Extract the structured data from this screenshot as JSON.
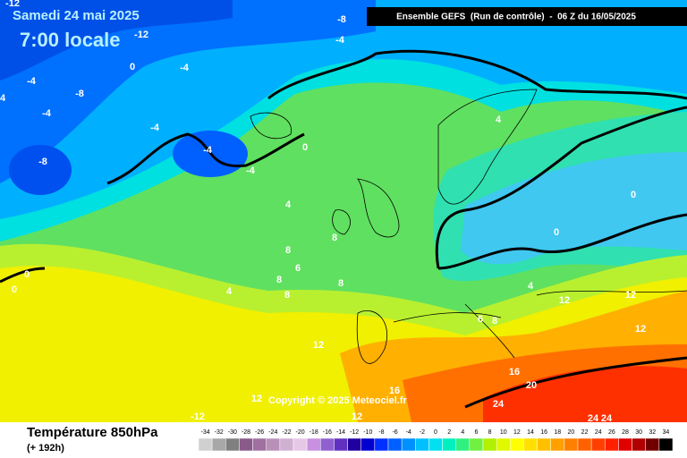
{
  "header": {
    "date": "Samedi 24 mai 2025",
    "time": "7:00 locale",
    "model": "Ensemble GEFS  (Run de contrôle)  -  06 Z du 16/05/2025"
  },
  "footer": {
    "title": "Température 850hPa",
    "lead": "(+ 192h)",
    "copyright": "Copyright © 2025 Meteociel.fr"
  },
  "contour_labels": [
    "-12",
    "-8",
    "-12",
    "-4",
    "0",
    "-4",
    "-4",
    "-8",
    "4",
    "-4",
    "-4",
    "4",
    "0",
    "-4",
    "-4",
    "-8",
    "0",
    "4",
    "8",
    "0",
    "8",
    "6",
    "0",
    "8",
    "8",
    "0",
    "4",
    "4",
    "12",
    "12",
    "8",
    "6",
    "8",
    "12",
    "12",
    "16",
    "20",
    "24",
    "16",
    "12",
    "-12",
    "12",
    "24",
    "24"
  ],
  "legend": {
    "values": [
      -34,
      -32,
      -30,
      -28,
      -26,
      -24,
      -22,
      -20,
      -18,
      -16,
      -14,
      -12,
      -10,
      -8,
      -6,
      -4,
      -2,
      0,
      2,
      4,
      6,
      8,
      10,
      12,
      14,
      16,
      18,
      20,
      22,
      24,
      26,
      28,
      30,
      32,
      34
    ],
    "colors": [
      "#d0d0d0",
      "#a8a8a8",
      "#808080",
      "#8a5a8a",
      "#a070a0",
      "#b890b8",
      "#d0b0d0",
      "#e6c8e6",
      "#c890e0",
      "#9060d0",
      "#6030c0",
      "#2000a0",
      "#0000d0",
      "#0030ff",
      "#0060ff",
      "#0090ff",
      "#00c0ff",
      "#00e0f0",
      "#00f0c0",
      "#30f080",
      "#70f040",
      "#b0f000",
      "#e0f800",
      "#ffff00",
      "#ffe000",
      "#ffc000",
      "#ffa000",
      "#ff8000",
      "#ff6000",
      "#ff4000",
      "#ff2000",
      "#e00000",
      "#b00000",
      "#700000",
      "#000000"
    ]
  }
}
